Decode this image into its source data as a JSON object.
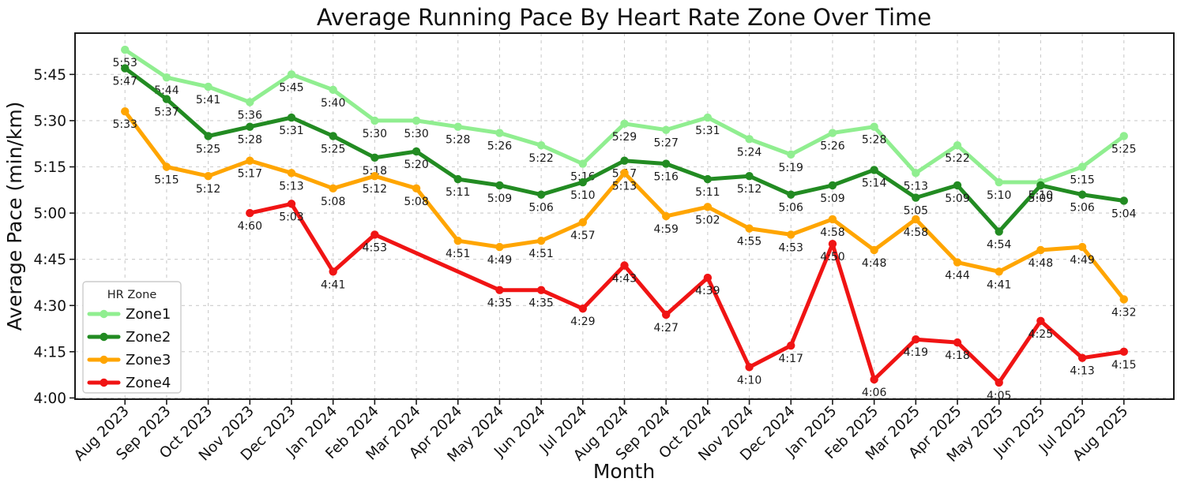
{
  "chart_data": {
    "type": "line",
    "title": "Average Running Pace By Heart Rate Zone Over Time",
    "xlabel": "Month",
    "ylabel": "Average Pace (min/km)",
    "grid": true,
    "x_tick_rotation": 45,
    "legend": {
      "title": "HR Zone",
      "position": "lower-left"
    },
    "categories": [
      "Aug 2023",
      "Sep 2023",
      "Oct 2023",
      "Nov 2023",
      "Dec 2023",
      "Jan 2024",
      "Feb 2024",
      "Mar 2024",
      "Apr 2024",
      "May 2024",
      "Jun 2024",
      "Jul 2024",
      "Aug 2024",
      "Sep 2024",
      "Oct 2024",
      "Nov 2024",
      "Dec 2024",
      "Jan 2025",
      "Feb 2025",
      "Mar 2025",
      "Apr 2025",
      "May 2025",
      "Jun 2025",
      "Jul 2025",
      "Aug 2025"
    ],
    "y_ticks": [
      "4:00",
      "4:15",
      "4:30",
      "4:45",
      "5:00",
      "5:15",
      "5:30",
      "5:45"
    ],
    "ylim_seconds": [
      239.6,
      358.4
    ],
    "series": [
      {
        "name": "Zone1",
        "color": "#90ee90",
        "labels": [
          "5:53",
          "5:44",
          "5:41",
          "5:36",
          "5:45",
          "5:40",
          "5:30",
          "5:30",
          "5:28",
          "5:26",
          "5:22",
          "5:16",
          "5:29",
          "5:27",
          "5:31",
          "5:24",
          "5:19",
          "5:26",
          "5:28",
          "5:13",
          "5:22",
          "5:10",
          "5:10",
          "5:15",
          "5:25"
        ],
        "values_seconds": [
          353,
          344,
          341,
          336,
          345,
          340,
          330,
          330,
          328,
          326,
          322,
          316,
          329,
          327,
          331,
          324,
          319,
          326,
          328,
          313,
          322,
          310,
          310,
          315,
          325
        ]
      },
      {
        "name": "Zone2",
        "color": "#228b22",
        "labels": [
          "5:47",
          "5:37",
          "5:25",
          "5:28",
          "5:31",
          "5:25",
          "5:18",
          "5:20",
          "5:11",
          "5:09",
          "5:06",
          "5:10",
          "5:17",
          "5:16",
          "5:11",
          "5:12",
          "5:06",
          "5:09",
          "5:14",
          "5:05",
          "5:09",
          "4:54",
          "5:09",
          "5:06",
          "5:04"
        ],
        "values_seconds": [
          347,
          337,
          325,
          328,
          331,
          325,
          318,
          320,
          311,
          309,
          306,
          310,
          317,
          316,
          311,
          312,
          306,
          309,
          314,
          305,
          309,
          294,
          309,
          306,
          304
        ]
      },
      {
        "name": "Zone3",
        "color": "#ffa500",
        "labels": [
          "5:33",
          "5:15",
          "5:12",
          "5:17",
          "5:13",
          "5:08",
          "5:12",
          "5:08",
          "4:51",
          "4:49",
          "4:51",
          "4:57",
          "5:13",
          "4:59",
          "5:02",
          "4:55",
          "4:53",
          "4:58",
          "4:48",
          "4:58",
          "4:44",
          "4:41",
          "4:48",
          "4:49",
          "4:32"
        ],
        "values_seconds": [
          333,
          315,
          312,
          317,
          313,
          308,
          312,
          308,
          291,
          289,
          291,
          297,
          313,
          299,
          302,
          295,
          293,
          298,
          288,
          298,
          284,
          281,
          288,
          289,
          272
        ]
      },
      {
        "name": "Zone4",
        "color": "#f01414",
        "labels": [
          null,
          null,
          null,
          "4:60",
          "5:03",
          "4:41",
          "4:53",
          null,
          null,
          "4:35",
          "4:35",
          "4:29",
          "4:43",
          "4:27",
          "4:39",
          "4:10",
          "4:17",
          "4:50",
          "4:06",
          "4:19",
          "4:18",
          "4:05",
          "4:25",
          "4:13",
          "4:15"
        ],
        "values_seconds": [
          null,
          null,
          null,
          300,
          303,
          281,
          293,
          null,
          null,
          275,
          275,
          269,
          283,
          267,
          279,
          250,
          257,
          290,
          246,
          259,
          258,
          245,
          265,
          253,
          255
        ]
      }
    ]
  }
}
